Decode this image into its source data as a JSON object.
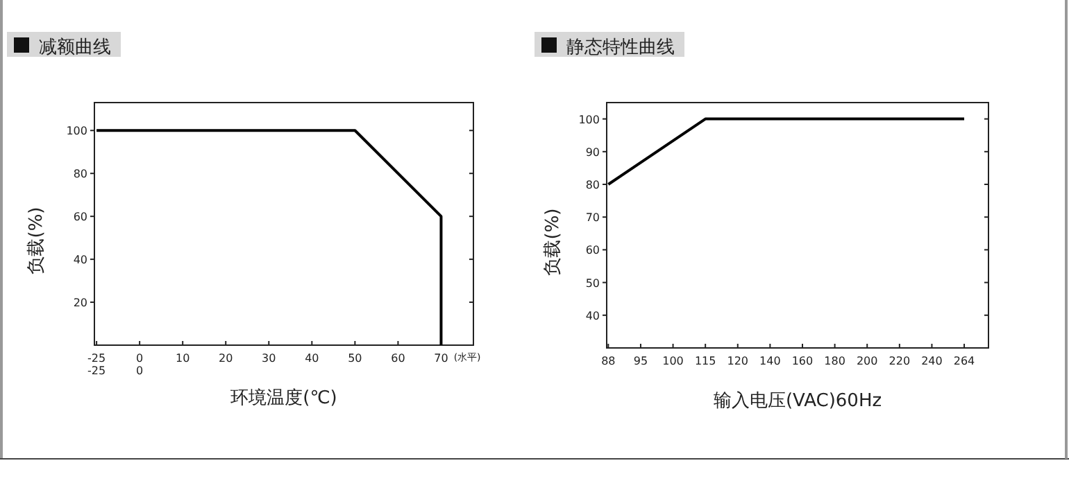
{
  "chart_data": [
    {
      "type": "line",
      "title": "减额曲线",
      "xlabel": "环境温度(℃)",
      "ylabel": "负载(%)",
      "categories": [
        "-25\n-25",
        "0\n0",
        "10",
        "20",
        "30",
        "40",
        "50",
        "60",
        "70"
      ],
      "series": [
        {
          "x": [
            "-25\n-25",
            "50",
            "70",
            "70"
          ],
          "values": [
            100,
            100,
            60,
            0
          ],
          "color": "#000000"
        }
      ],
      "ylim": [
        0,
        113
      ],
      "yticks": [
        20,
        40,
        60,
        80,
        100
      ],
      "grid": false,
      "annotations": [
        "(水平)"
      ]
    },
    {
      "type": "line",
      "title": "静态特性曲线",
      "xlabel": "输入电压(VAC)60Hz",
      "ylabel": "负载(%)",
      "categories": [
        "88",
        "95",
        "100",
        "115",
        "120",
        "140",
        "160",
        "180",
        "200",
        "220",
        "240",
        "264"
      ],
      "series": [
        {
          "x": [
            "88",
            "115",
            "264"
          ],
          "values": [
            80,
            100,
            100
          ],
          "color": "#000000"
        }
      ],
      "ylim": [
        30,
        105
      ],
      "yticks": [
        40,
        50,
        60,
        70,
        80,
        90,
        100
      ],
      "grid": false
    }
  ]
}
